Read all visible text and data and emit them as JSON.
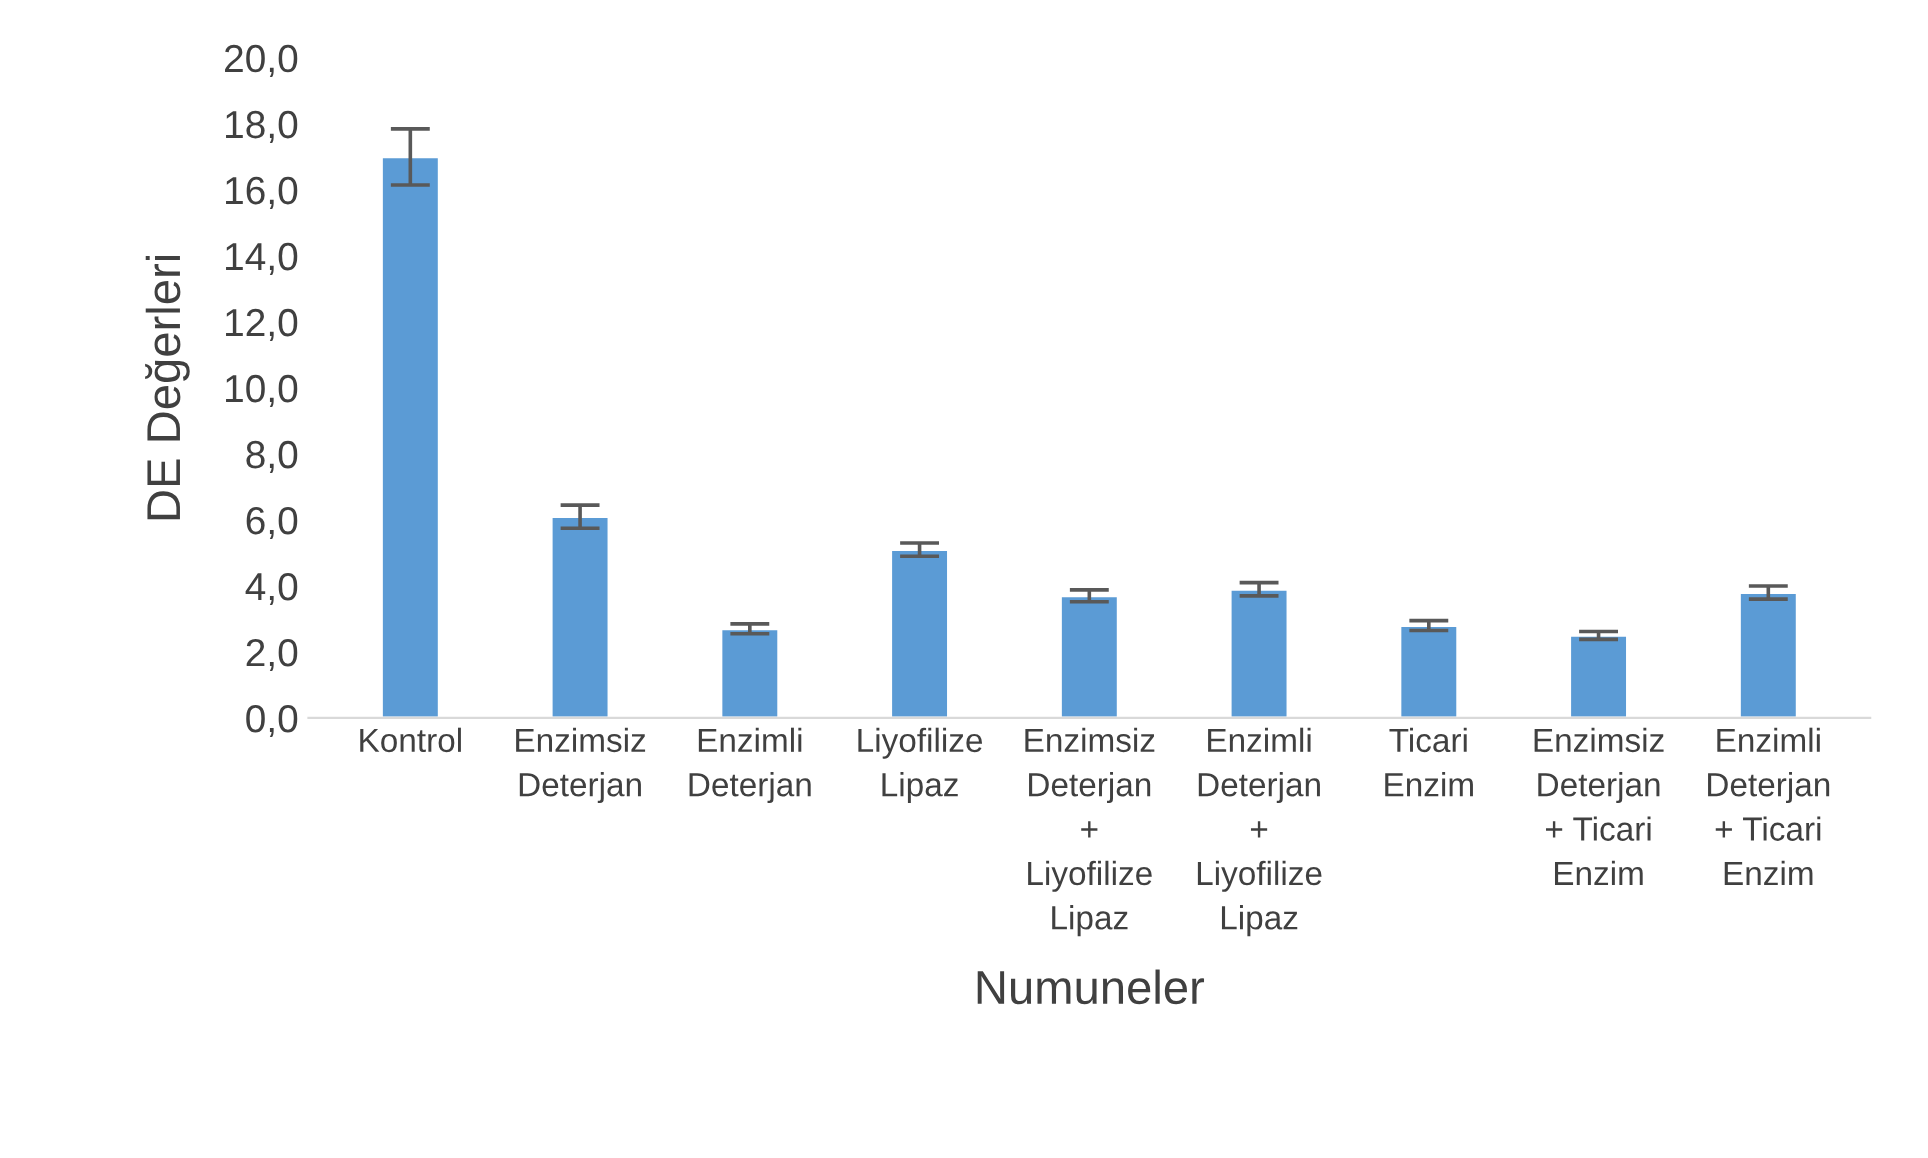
{
  "chart_data": {
    "type": "bar",
    "xlabel": "Numuneler",
    "ylabel": "DE Değerleri",
    "categories": [
      "Kontrol",
      "Enzimsiz\nDeterjan",
      "Enzimli\nDeterjan",
      "Liyofilize\nLipaz",
      "Enzimsiz\nDeterjan\n+\nLiyofilize\nLipaz",
      "Enzimli\nDeterjan\n+\nLiyofilize\nLipaz",
      "Ticari\nEnzim",
      "Enzimsiz\nDeterjan\n+ Ticari\nEnzim",
      "Enzimli\nDeterjan\n+ Ticari\nEnzim"
    ],
    "values": [
      17.0,
      6.1,
      2.7,
      5.1,
      3.7,
      3.9,
      2.8,
      2.5,
      3.8
    ],
    "errors": [
      0.85,
      0.35,
      0.15,
      0.2,
      0.18,
      0.2,
      0.15,
      0.12,
      0.2
    ],
    "color": "#5b9bd5",
    "ylim": [
      0,
      20
    ],
    "yticks": [
      {
        "value": 0,
        "label": "0,0"
      },
      {
        "value": 2,
        "label": "2,0"
      },
      {
        "value": 4,
        "label": "4,0"
      },
      {
        "value": 6,
        "label": "6,0"
      },
      {
        "value": 8,
        "label": "8,0"
      },
      {
        "value": 10,
        "label": "10,0"
      },
      {
        "value": 12,
        "label": "12,0"
      },
      {
        "value": 14,
        "label": "14,0"
      },
      {
        "value": 16,
        "label": "16,0"
      },
      {
        "value": 18,
        "label": "18,0"
      },
      {
        "value": 20,
        "label": "20,0"
      }
    ],
    "grid": false,
    "legend": false
  }
}
